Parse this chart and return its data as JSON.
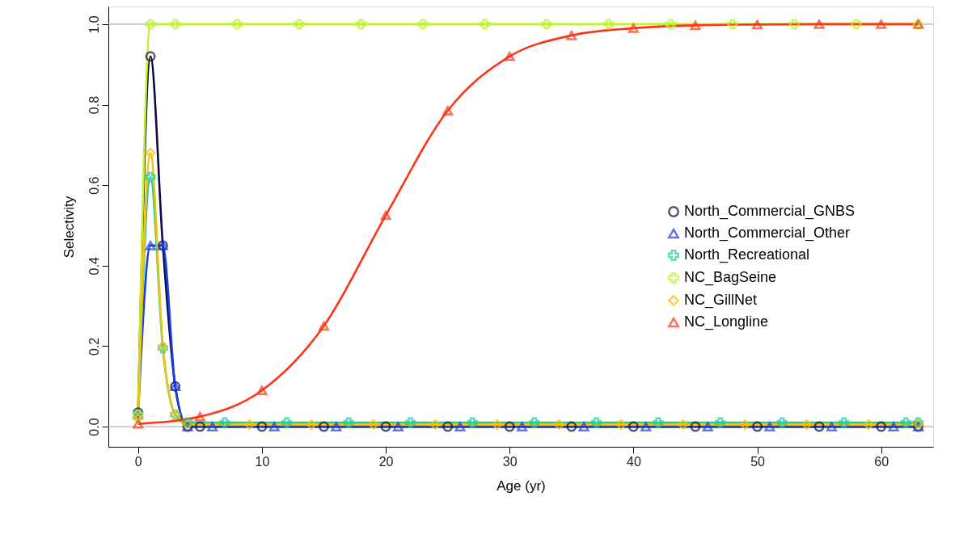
{
  "chart_data": {
    "type": "line",
    "xlabel": "Age (yr)",
    "ylabel": "Selectivity",
    "xlim": [
      -2.4,
      64.2
    ],
    "ylim": [
      -0.05,
      1.044
    ],
    "xticks": [
      0,
      10,
      20,
      30,
      40,
      50,
      60
    ],
    "yticks": [
      {
        "value": 0,
        "label": "0.0"
      },
      {
        "value": 0.2,
        "label": "0.2"
      },
      {
        "value": 0.4,
        "label": "0.4"
      },
      {
        "value": 0.6,
        "label": "0.6"
      },
      {
        "value": 0.8,
        "label": "0.8"
      },
      {
        "value": 1,
        "label": "1.0"
      }
    ],
    "grid": false,
    "legend": "bottom right",
    "line_style": "solid",
    "ref_lines": [
      {
        "axis": "y",
        "value": 0,
        "color": "#b4b4b4"
      },
      {
        "axis": "y",
        "value": 1,
        "color": "#b4b4b4"
      }
    ],
    "series": [
      {
        "name": "North_Commercial_GNBS",
        "color": "#0c0c48",
        "marker": "circle",
        "x": [
          0,
          1,
          2,
          3,
          4,
          5,
          10,
          15,
          20,
          25,
          30,
          35,
          40,
          45,
          50,
          55,
          60,
          63
        ],
        "values": [
          0.035,
          0.92,
          0.45,
          0.1,
          0,
          0,
          0,
          0,
          0,
          0,
          0,
          0,
          0,
          0,
          0,
          0,
          0,
          0
        ]
      },
      {
        "name": "North_Commercial_Other",
        "color": "#1a3ee0",
        "marker": "triangle",
        "x": [
          0,
          1,
          2,
          3,
          4,
          6,
          11,
          16,
          21,
          26,
          31,
          36,
          41,
          46,
          51,
          56,
          61,
          63
        ],
        "values": [
          0.03,
          0.45,
          0.45,
          0.1,
          0,
          0,
          0,
          0,
          0,
          0,
          0,
          0,
          0,
          0,
          0,
          0,
          0,
          0
        ]
      },
      {
        "name": "North_Recreational",
        "color": "#22c8a0",
        "marker": "cross",
        "x": [
          0,
          1,
          2,
          3,
          4,
          7,
          12,
          17,
          22,
          27,
          32,
          37,
          42,
          47,
          52,
          57,
          62,
          63
        ],
        "values": [
          0.03,
          0.62,
          0.195,
          0.03,
          0.01,
          0.01,
          0.01,
          0.01,
          0.01,
          0.01,
          0.01,
          0.01,
          0.01,
          0.01,
          0.01,
          0.01,
          0.01,
          0.01
        ]
      },
      {
        "name": "NC_BagSeine",
        "color": "#bff02a",
        "marker": "cross",
        "x": [
          0,
          1,
          3,
          8,
          13,
          18,
          23,
          28,
          33,
          38,
          43,
          48,
          53,
          58,
          63
        ],
        "values": [
          0.03,
          1,
          1,
          1,
          1,
          1,
          1,
          1,
          1,
          1,
          1,
          1,
          1,
          1,
          1
        ]
      },
      {
        "name": "NC_GillNet",
        "color": "#f2c20a",
        "marker": "diamond",
        "x": [
          0,
          1,
          2,
          3,
          4,
          9,
          14,
          19,
          24,
          29,
          34,
          39,
          44,
          49,
          54,
          59,
          63
        ],
        "values": [
          0.02,
          0.68,
          0.2,
          0.03,
          0.005,
          0.005,
          0.005,
          0.005,
          0.005,
          0.005,
          0.005,
          0.005,
          0.005,
          0.005,
          0.005,
          0.005,
          0.005
        ]
      },
      {
        "name": "NC_Longline",
        "color": "#ff3414",
        "marker": "triangle",
        "x": [
          0,
          5,
          10,
          15,
          20,
          25,
          30,
          35,
          40,
          45,
          50,
          55,
          60,
          63
        ],
        "values": [
          0.007,
          0.025,
          0.09,
          0.25,
          0.525,
          0.785,
          0.92,
          0.972,
          0.99,
          0.997,
          0.999,
          1,
          1,
          1
        ]
      }
    ]
  }
}
